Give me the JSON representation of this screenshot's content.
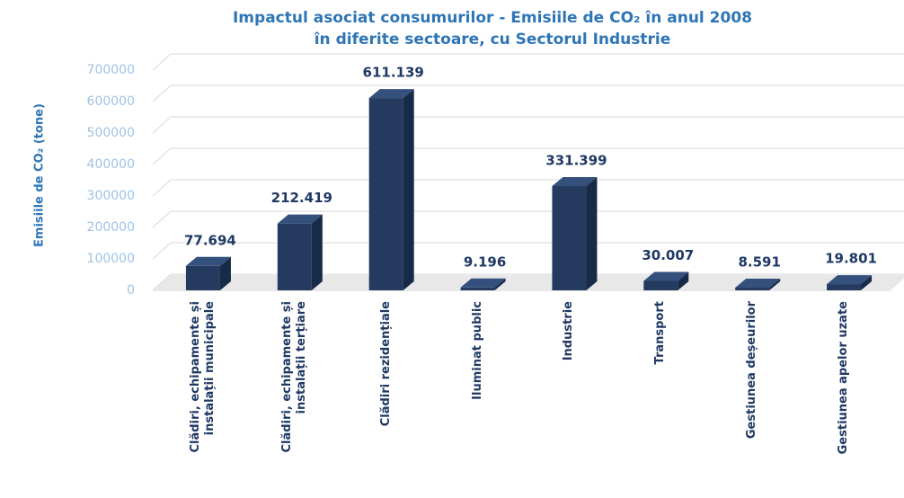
{
  "chart_data": {
    "type": "bar3d",
    "title": [
      "Impactul asociat consumurilor - Emisiile de CO₂ în anul 2008",
      "în diferite sectoare, cu Sectorul Industrie"
    ],
    "ylabel": "Emisiile de CO₂  (tone)",
    "categories": [
      "Clădiri, echipamente și instalații municipale",
      "Clădiri, echipamente și instalații terțiare",
      "Clădiri rezidențiale",
      "Iluminat public",
      "Industrie",
      "Transport",
      "Gestiunea deșeurilor",
      "Gestiunea apelor uzate"
    ],
    "values": [
      77694,
      212419,
      611139,
      9196,
      331399,
      30007,
      8591,
      19801
    ],
    "value_labels": [
      "77.694",
      "212.419",
      "611.139",
      "9.196",
      "331.399",
      "30.007",
      "8.591",
      "19.801"
    ],
    "color": "#243a5e",
    "ylim": [
      0,
      700000
    ],
    "yticks": [
      0,
      100000,
      200000,
      300000,
      400000,
      500000,
      600000,
      700000
    ],
    "grid": true
  }
}
